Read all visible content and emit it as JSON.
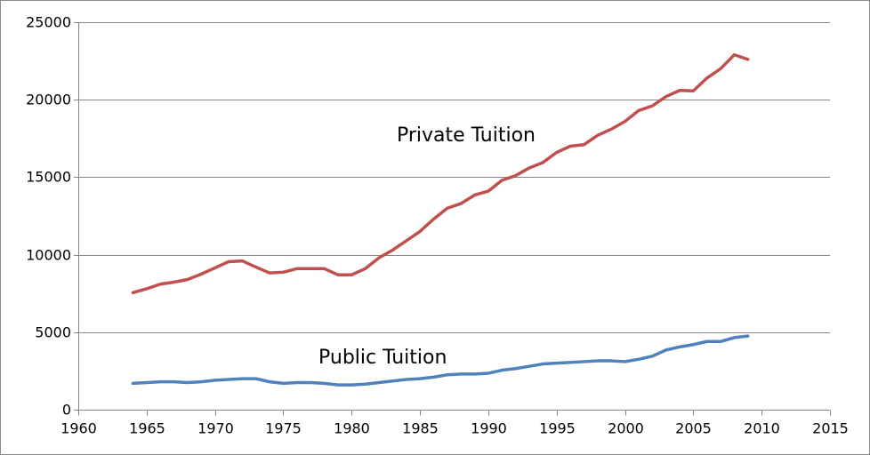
{
  "chart_data": {
    "type": "line",
    "title": "",
    "xlabel": "",
    "ylabel": "",
    "xlim": [
      1960,
      2015
    ],
    "ylim": [
      0,
      25000
    ],
    "x_ticks": [
      1960,
      1965,
      1970,
      1975,
      1980,
      1985,
      1990,
      1995,
      2000,
      2005,
      2010,
      2015
    ],
    "y_ticks": [
      0,
      5000,
      10000,
      15000,
      20000,
      25000
    ],
    "x_tick_labels": [
      "1960",
      "1965",
      "1970",
      "1975",
      "1980",
      "1985",
      "1990",
      "1995",
      "2000",
      "2005",
      "2010",
      "2015"
    ],
    "y_tick_labels": [
      "0",
      "5000",
      "10000",
      "15000",
      "20000",
      "25000"
    ],
    "grid": "horizontal",
    "legend": "none",
    "x": [
      1964,
      1965,
      1966,
      1967,
      1968,
      1969,
      1970,
      1971,
      1972,
      1973,
      1974,
      1975,
      1976,
      1977,
      1978,
      1979,
      1980,
      1981,
      1982,
      1983,
      1984,
      1985,
      1986,
      1987,
      1988,
      1989,
      1990,
      1991,
      1992,
      1993,
      1994,
      1995,
      1996,
      1997,
      1998,
      1999,
      2000,
      2001,
      2002,
      2003,
      2004,
      2005,
      2006,
      2007,
      2008,
      2009
    ],
    "series": [
      {
        "name": "Private Tuition",
        "color": "#c0504d",
        "values": [
          7550,
          7800,
          8100,
          8230,
          8400,
          8750,
          9150,
          9550,
          9600,
          9200,
          8820,
          8870,
          9100,
          9100,
          9100,
          8700,
          8700,
          9100,
          9800,
          10300,
          10900,
          11500,
          12300,
          13000,
          13300,
          13850,
          14100,
          14800,
          15100,
          15600,
          15950,
          16600,
          17000,
          17100,
          17700,
          18100,
          18600,
          19300,
          19600,
          20200,
          20600,
          20570,
          21400,
          22000,
          22900,
          22600
        ]
      },
      {
        "name": "Public Tuition",
        "color": "#4f81bd",
        "values": [
          1700,
          1750,
          1800,
          1800,
          1750,
          1800,
          1900,
          1950,
          2000,
          2000,
          1800,
          1700,
          1750,
          1750,
          1700,
          1600,
          1600,
          1650,
          1750,
          1850,
          1950,
          2000,
          2100,
          2250,
          2300,
          2300,
          2350,
          2550,
          2650,
          2800,
          2950,
          3000,
          3050,
          3100,
          3150,
          3150,
          3100,
          3250,
          3450,
          3850,
          4050,
          4200,
          4400,
          4400,
          4650,
          4750
        ]
      }
    ]
  }
}
